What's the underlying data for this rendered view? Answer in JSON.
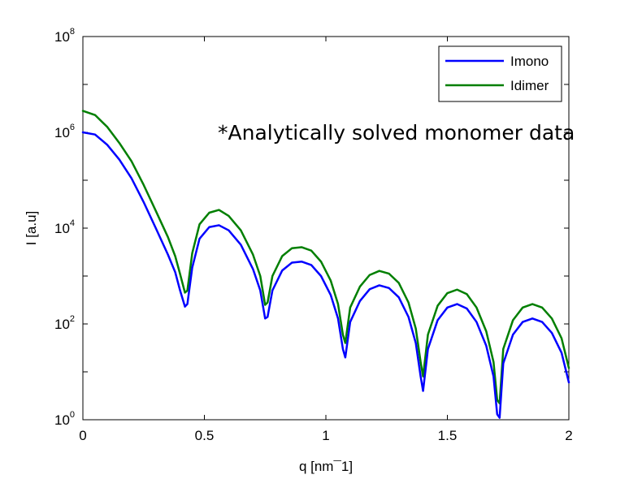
{
  "chart_data": {
    "type": "line",
    "xlabel": "q [nm¯1]",
    "ylabel": "I [a.u]",
    "xlim": [
      0,
      2
    ],
    "ylim": [
      1,
      100000000
    ],
    "yscale": "log",
    "grid": false,
    "legend_position": "top-right",
    "annotation": "*Analytically solved monomer data",
    "x_ticks": [
      "0",
      "0.5",
      "1",
      "1.5",
      "2"
    ],
    "y_ticks": [
      {
        "base": "10",
        "exp": "0"
      },
      {
        "base": "10",
        "exp": "2"
      },
      {
        "base": "10",
        "exp": "4"
      },
      {
        "base": "10",
        "exp": "6"
      },
      {
        "base": "10",
        "exp": "8"
      }
    ],
    "series": [
      {
        "name": "Imono",
        "color": "#0000ff",
        "x": [
          0,
          0.05,
          0.1,
          0.15,
          0.2,
          0.25,
          0.3,
          0.35,
          0.38,
          0.4,
          0.42,
          0.43,
          0.45,
          0.48,
          0.52,
          0.56,
          0.6,
          0.65,
          0.7,
          0.73,
          0.75,
          0.76,
          0.78,
          0.82,
          0.86,
          0.9,
          0.94,
          0.98,
          1.02,
          1.05,
          1.07,
          1.08,
          1.1,
          1.14,
          1.18,
          1.22,
          1.26,
          1.3,
          1.34,
          1.37,
          1.39,
          1.4,
          1.42,
          1.46,
          1.5,
          1.54,
          1.58,
          1.62,
          1.66,
          1.69,
          1.705,
          1.715,
          1.73,
          1.77,
          1.81,
          1.85,
          1.89,
          1.93,
          1.97,
          2.0
        ],
        "y": [
          1000000,
          900000,
          550000,
          270000,
          110000,
          35000,
          10000,
          2800,
          1200,
          500,
          230,
          260,
          1500,
          6000,
          10500,
          11500,
          9000,
          4500,
          1400,
          500,
          130,
          140,
          500,
          1300,
          1900,
          2000,
          1700,
          1000,
          400,
          130,
          30,
          20,
          110,
          300,
          530,
          640,
          560,
          360,
          140,
          40,
          8,
          4,
          30,
          120,
          220,
          260,
          210,
          110,
          35,
          8,
          1.3,
          1.1,
          15,
          60,
          110,
          130,
          110,
          65,
          25,
          6
        ]
      },
      {
        "name": "Idimer",
        "color": "#007f00",
        "x": [
          0,
          0.05,
          0.1,
          0.15,
          0.2,
          0.25,
          0.3,
          0.35,
          0.38,
          0.4,
          0.42,
          0.43,
          0.45,
          0.48,
          0.52,
          0.56,
          0.6,
          0.65,
          0.7,
          0.73,
          0.75,
          0.76,
          0.78,
          0.82,
          0.86,
          0.9,
          0.94,
          0.98,
          1.02,
          1.05,
          1.07,
          1.08,
          1.1,
          1.14,
          1.18,
          1.22,
          1.26,
          1.3,
          1.34,
          1.37,
          1.39,
          1.4,
          1.42,
          1.46,
          1.5,
          1.54,
          1.58,
          1.62,
          1.66,
          1.69,
          1.705,
          1.715,
          1.73,
          1.77,
          1.81,
          1.85,
          1.89,
          1.93,
          1.97,
          2.0
        ],
        "y": [
          2800000,
          2300000,
          1300000,
          600000,
          250000,
          80000,
          23000,
          6500,
          2600,
          1100,
          450,
          500,
          3000,
          12000,
          21000,
          24000,
          18000,
          9000,
          2800,
          1000,
          250,
          280,
          1000,
          2600,
          3800,
          4000,
          3400,
          2000,
          800,
          260,
          60,
          40,
          220,
          600,
          1050,
          1280,
          1120,
          720,
          280,
          80,
          16,
          8,
          60,
          240,
          440,
          520,
          420,
          220,
          70,
          16,
          2.6,
          2.2,
          30,
          120,
          220,
          260,
          220,
          130,
          50,
          12
        ]
      }
    ]
  }
}
